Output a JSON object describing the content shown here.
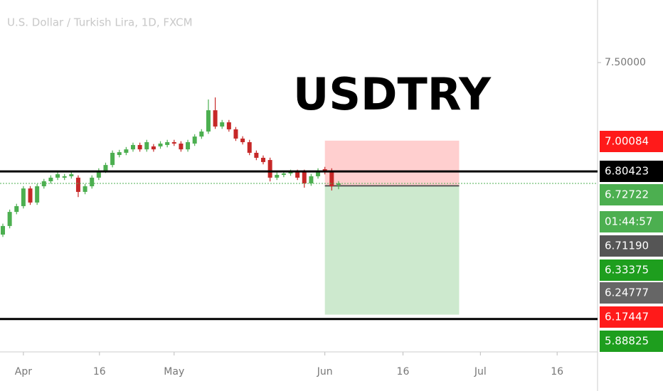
{
  "chart_data": {
    "type": "candlestick",
    "title": "U.S. Dollar / Turkish Lira, 1D, FXCM",
    "annotation": "USDTRY",
    "up_color": "#4caf50",
    "down_color": "#c62828",
    "open": [
      6.4,
      6.455,
      6.545,
      6.582,
      6.695,
      6.605,
      6.709,
      6.741,
      6.764,
      6.764,
      6.773,
      6.764,
      6.673,
      6.709,
      6.764,
      6.809,
      6.845,
      6.909,
      6.923,
      6.945,
      6.973,
      6.945,
      6.964,
      6.964,
      6.973,
      6.991,
      6.982,
      6.945,
      6.982,
      7.027,
      7.059,
      7.195,
      7.091,
      7.118,
      7.073,
      7.014,
      6.991,
      6.923,
      6.891,
      6.877,
      6.764,
      6.782,
      6.791,
      6.8,
      6.8,
      6.727,
      6.773,
      6.818,
      6.809,
      6.718
    ],
    "high": [
      6.47,
      6.56,
      6.597,
      6.71,
      6.71,
      6.724,
      6.756,
      6.779,
      6.801,
      6.788,
      6.801,
      6.779,
      6.724,
      6.779,
      6.824,
      6.86,
      6.938,
      6.942,
      6.96,
      6.988,
      6.988,
      7.006,
      6.979,
      6.997,
      7.006,
      7.006,
      6.997,
      7.006,
      7.042,
      7.074,
      7.264,
      7.277,
      7.133,
      7.133,
      7.088,
      7.029,
      7.006,
      6.938,
      6.906,
      6.892,
      6.797,
      6.806,
      6.815,
      6.815,
      6.815,
      6.788,
      6.824,
      6.833,
      6.824,
      6.742
    ],
    "low": [
      6.385,
      6.44,
      6.53,
      6.567,
      6.59,
      6.59,
      6.694,
      6.726,
      6.749,
      6.749,
      6.758,
      6.64,
      6.658,
      6.694,
      6.749,
      6.794,
      6.83,
      6.894,
      6.908,
      6.93,
      6.93,
      6.93,
      6.93,
      6.949,
      6.958,
      6.967,
      6.93,
      6.93,
      6.967,
      7.012,
      7.044,
      7.076,
      7.076,
      7.058,
      6.999,
      6.976,
      6.908,
      6.876,
      6.849,
      6.74,
      6.749,
      6.767,
      6.776,
      6.749,
      6.7,
      6.712,
      6.758,
      6.785,
      6.682,
      6.69
    ],
    "close": [
      6.455,
      6.545,
      6.582,
      6.695,
      6.605,
      6.709,
      6.741,
      6.764,
      6.786,
      6.773,
      6.786,
      6.673,
      6.709,
      6.764,
      6.809,
      6.845,
      6.923,
      6.927,
      6.945,
      6.973,
      6.945,
      6.991,
      6.945,
      6.982,
      6.991,
      6.982,
      6.945,
      6.991,
      7.027,
      7.059,
      7.195,
      7.091,
      7.118,
      7.073,
      7.014,
      6.991,
      6.923,
      6.891,
      6.864,
      6.764,
      6.782,
      6.791,
      6.8,
      6.764,
      6.727,
      6.773,
      6.809,
      6.8,
      6.709,
      6.727
    ],
    "xlim": [
      -0.415,
      86.8
    ],
    "xticks": [
      {
        "value": 3,
        "label": "Apr"
      },
      {
        "value": 14.1,
        "label": "16"
      },
      {
        "value": 25,
        "label": "May"
      },
      {
        "value": 47,
        "label": "Jun"
      },
      {
        "value": 58.4,
        "label": "16"
      },
      {
        "value": 69.7,
        "label": "Jul"
      },
      {
        "value": 80.9,
        "label": "16"
      }
    ],
    "ylim": [
      5.65,
      7.9
    ],
    "yticks": [
      {
        "value": 7.5,
        "label": "7.50000"
      }
    ],
    "horizontal_lines": [
      6.80423,
      5.86
    ],
    "current_price": 6.72722,
    "position": {
      "x_start": 47,
      "x_end": 66.6,
      "entry": 6.7119,
      "stop": 7.00084,
      "target": 5.88825
    },
    "axis_badges": [
      {
        "label": "7.00084",
        "color": "#ff1a1a"
      },
      {
        "label": "6.80423",
        "color": "#000000"
      },
      {
        "label": "6.72722",
        "color": "#4caf50"
      },
      {
        "label": "01:44:57",
        "color": "#4caf50"
      },
      {
        "label": "6.71190",
        "color": "#555555"
      },
      {
        "label": "6.33375",
        "color": "#1e9e1e"
      },
      {
        "label": "6.24777",
        "color": "#666666"
      },
      {
        "label": "6.17447",
        "color": "#ff1a1a"
      },
      {
        "label": "5.88825",
        "color": "#1e9e1e"
      }
    ]
  }
}
